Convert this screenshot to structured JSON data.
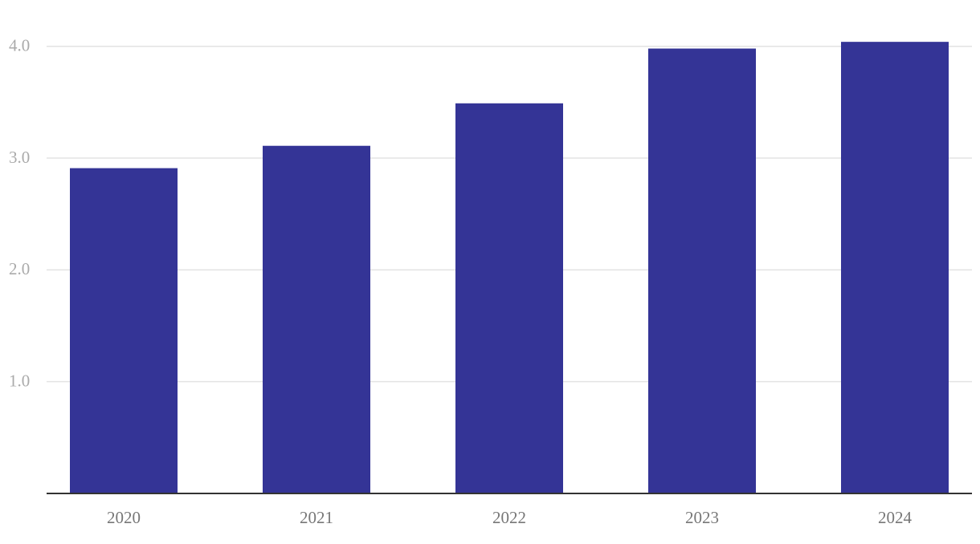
{
  "chart_data": {
    "type": "bar",
    "categories": [
      "2020",
      "2021",
      "2022",
      "2023",
      "2024"
    ],
    "values": [
      2.91,
      3.11,
      3.49,
      3.98,
      4.04
    ],
    "color": "#343496",
    "ylim": [
      0,
      4.4
    ],
    "yticks": [
      {
        "value": 1,
        "label": "1.0"
      },
      {
        "value": 2,
        "label": "2.0"
      },
      {
        "value": 3,
        "label": "3.0"
      },
      {
        "value": 4,
        "label": "4.0"
      }
    ],
    "grid": true
  }
}
